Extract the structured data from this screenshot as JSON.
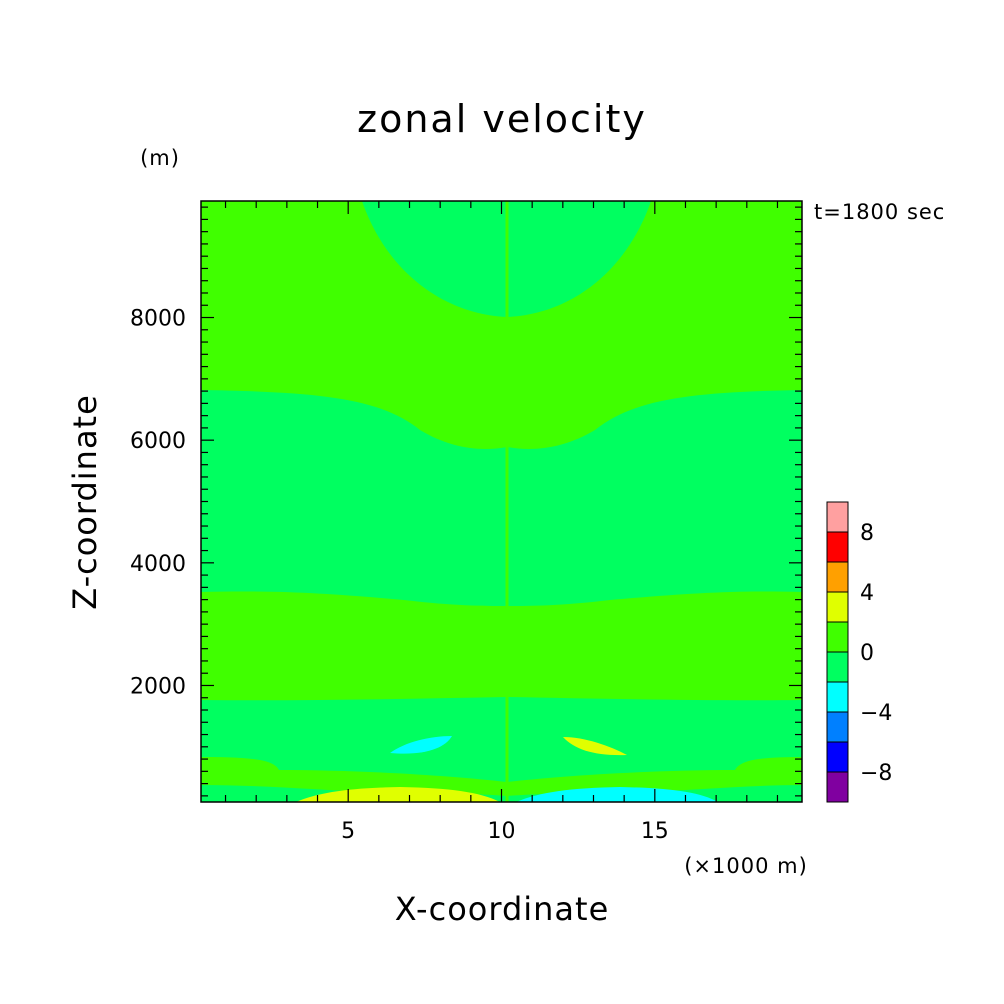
{
  "chart_data": {
    "type": "heatmap",
    "title": "zonal velocity",
    "xlabel": "X-coordinate",
    "x_unit_label": "(×1000 m)",
    "ylabel": "Z-coordinate",
    "y_unit_label": "(m)",
    "time_label": "t=1800 sec",
    "xlim": [
      0.2,
      19.8
    ],
    "ylim": [
      100,
      9900
    ],
    "x_ticks": [
      5,
      10,
      15
    ],
    "x_tick_labels": [
      "5",
      "10",
      "15"
    ],
    "y_ticks": [
      2000,
      4000,
      6000,
      8000
    ],
    "y_tick_labels": [
      "2000",
      "4000",
      "6000",
      "8000"
    ],
    "colorbar": {
      "boundaries": [
        -10,
        -8,
        -6,
        -4,
        -2,
        0,
        2,
        4,
        6,
        8,
        10
      ],
      "colors": [
        "#8000a0",
        "#0000ff",
        "#0080ff",
        "#00ffff",
        "#00ff60",
        "#40ff00",
        "#e0ff00",
        "#ffa000",
        "#ff0000",
        "#ffa0a0"
      ],
      "tick_values": [
        -8,
        -4,
        0,
        4,
        8
      ],
      "tick_labels": [
        "−8",
        "−4",
        "0",
        "4",
        "8"
      ]
    },
    "regions": [
      {
        "name": "background",
        "value_range": [
          0,
          2
        ],
        "color": "#40ff00"
      },
      {
        "name": "upper-dome",
        "value_range": [
          -2,
          0
        ],
        "color": "#00ff60"
      },
      {
        "name": "mid-band",
        "value_range": [
          -2,
          0
        ],
        "color": "#00ff60"
      },
      {
        "name": "lower-band",
        "value_range": [
          -2,
          0
        ],
        "color": "#00ff60"
      },
      {
        "name": "surface-band",
        "value_range": [
          -2,
          0
        ],
        "color": "#00ff60"
      },
      {
        "name": "left-negative-blob",
        "value_range": [
          -4,
          -2
        ],
        "color": "#00ffff"
      },
      {
        "name": "right-positive-blob",
        "value_range": [
          2,
          4
        ],
        "color": "#e0ff00"
      },
      {
        "name": "left-surface-positive",
        "value_range": [
          2,
          4
        ],
        "color": "#e0ff00"
      },
      {
        "name": "right-surface-negative",
        "value_range": [
          -4,
          -2
        ],
        "color": "#00ffff"
      }
    ]
  }
}
